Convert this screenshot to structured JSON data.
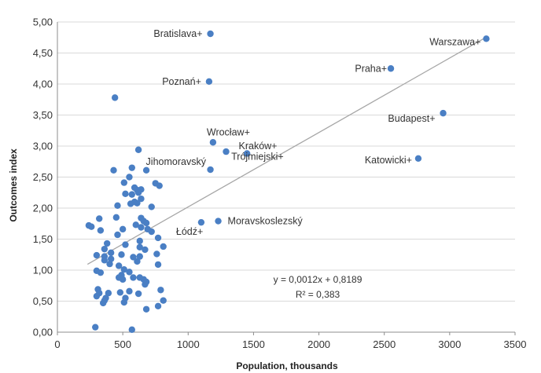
{
  "chart_data": {
    "type": "scatter",
    "xlabel": "Population, thousands",
    "ylabel": "Outcomes index",
    "xlim": [
      0,
      3500
    ],
    "ylim": [
      0,
      5
    ],
    "x_ticks": [
      "0",
      "500",
      "1000",
      "1500",
      "2000",
      "2500",
      "3000",
      "3500"
    ],
    "y_ticks": [
      "0,00",
      "0,50",
      "1,00",
      "1,50",
      "2,00",
      "2,50",
      "3,00",
      "3,50",
      "4,00",
      "4,50",
      "5,00"
    ],
    "grid": "horizontal",
    "marker_color": "#4a7fc4",
    "trendline_color": "#a6a6a6",
    "trendline": {
      "slope": 0.0012,
      "intercept": 0.8189,
      "x_range": [
        230,
        3280
      ]
    },
    "equation": "y = 0,0012x + 0,8189",
    "r_squared": "R² = 0,383",
    "labeled_points": [
      {
        "label": "Bratislava+",
        "x": 1170,
        "y": 4.81
      },
      {
        "label": "Warszawa+",
        "x": 3280,
        "y": 4.73
      },
      {
        "label": "Praha+",
        "x": 2550,
        "y": 4.25
      },
      {
        "label": "Poznań+",
        "x": 1160,
        "y": 4.04
      },
      {
        "label": "Budapest+",
        "x": 2950,
        "y": 3.53
      },
      {
        "label": "Wrocław+",
        "x": 1190,
        "y": 3.06
      },
      {
        "label": "Kraków+",
        "x": 1290,
        "y": 2.91
      },
      {
        "label": "Trójmiejski+",
        "x": 1450,
        "y": 2.88
      },
      {
        "label": "Jihomoravský",
        "x": 1170,
        "y": 2.62
      },
      {
        "label": "Katowicki+",
        "x": 2760,
        "y": 2.8
      },
      {
        "label": "Moravskoslezský",
        "x": 1230,
        "y": 1.79
      },
      {
        "label": "Łódź+",
        "x": 1100,
        "y": 1.77
      }
    ],
    "points": [
      [
        440,
        3.78
      ],
      [
        620,
        2.94
      ],
      [
        570,
        2.65
      ],
      [
        430,
        2.61
      ],
      [
        680,
        2.61
      ],
      [
        550,
        2.5
      ],
      [
        510,
        2.41
      ],
      [
        750,
        2.4
      ],
      [
        780,
        2.36
      ],
      [
        590,
        2.33
      ],
      [
        610,
        2.29
      ],
      [
        620,
        2.25
      ],
      [
        640,
        2.3
      ],
      [
        520,
        2.23
      ],
      [
        570,
        2.22
      ],
      [
        640,
        2.15
      ],
      [
        590,
        2.1
      ],
      [
        560,
        2.07
      ],
      [
        610,
        2.08
      ],
      [
        460,
        2.04
      ],
      [
        720,
        2.02
      ],
      [
        450,
        1.85
      ],
      [
        320,
        1.83
      ],
      [
        640,
        1.84
      ],
      [
        660,
        1.79
      ],
      [
        680,
        1.76
      ],
      [
        600,
        1.73
      ],
      [
        240,
        1.72
      ],
      [
        260,
        1.7
      ],
      [
        330,
        1.64
      ],
      [
        500,
        1.66
      ],
      [
        640,
        1.69
      ],
      [
        690,
        1.66
      ],
      [
        720,
        1.62
      ],
      [
        460,
        1.57
      ],
      [
        770,
        1.52
      ],
      [
        630,
        1.47
      ],
      [
        380,
        1.43
      ],
      [
        520,
        1.41
      ],
      [
        810,
        1.38
      ],
      [
        360,
        1.34
      ],
      [
        630,
        1.37
      ],
      [
        670,
        1.33
      ],
      [
        410,
        1.28
      ],
      [
        300,
        1.24
      ],
      [
        360,
        1.22
      ],
      [
        490,
        1.25
      ],
      [
        760,
        1.26
      ],
      [
        630,
        1.22
      ],
      [
        410,
        1.18
      ],
      [
        580,
        1.21
      ],
      [
        360,
        1.16
      ],
      [
        610,
        1.14
      ],
      [
        400,
        1.1
      ],
      [
        470,
        1.07
      ],
      [
        770,
        1.09
      ],
      [
        510,
        1.01
      ],
      [
        300,
        0.99
      ],
      [
        330,
        0.96
      ],
      [
        550,
        0.97
      ],
      [
        490,
        0.92
      ],
      [
        470,
        0.88
      ],
      [
        580,
        0.88
      ],
      [
        630,
        0.88
      ],
      [
        500,
        0.85
      ],
      [
        660,
        0.85
      ],
      [
        680,
        0.81
      ],
      [
        670,
        0.77
      ],
      [
        310,
        0.69
      ],
      [
        790,
        0.68
      ],
      [
        550,
        0.66
      ],
      [
        320,
        0.63
      ],
      [
        390,
        0.63
      ],
      [
        480,
        0.64
      ],
      [
        620,
        0.62
      ],
      [
        300,
        0.58
      ],
      [
        370,
        0.55
      ],
      [
        520,
        0.55
      ],
      [
        360,
        0.51
      ],
      [
        810,
        0.51
      ],
      [
        350,
        0.47
      ],
      [
        510,
        0.48
      ],
      [
        770,
        0.42
      ],
      [
        680,
        0.37
      ],
      [
        290,
        0.08
      ],
      [
        570,
        0.04
      ]
    ]
  }
}
